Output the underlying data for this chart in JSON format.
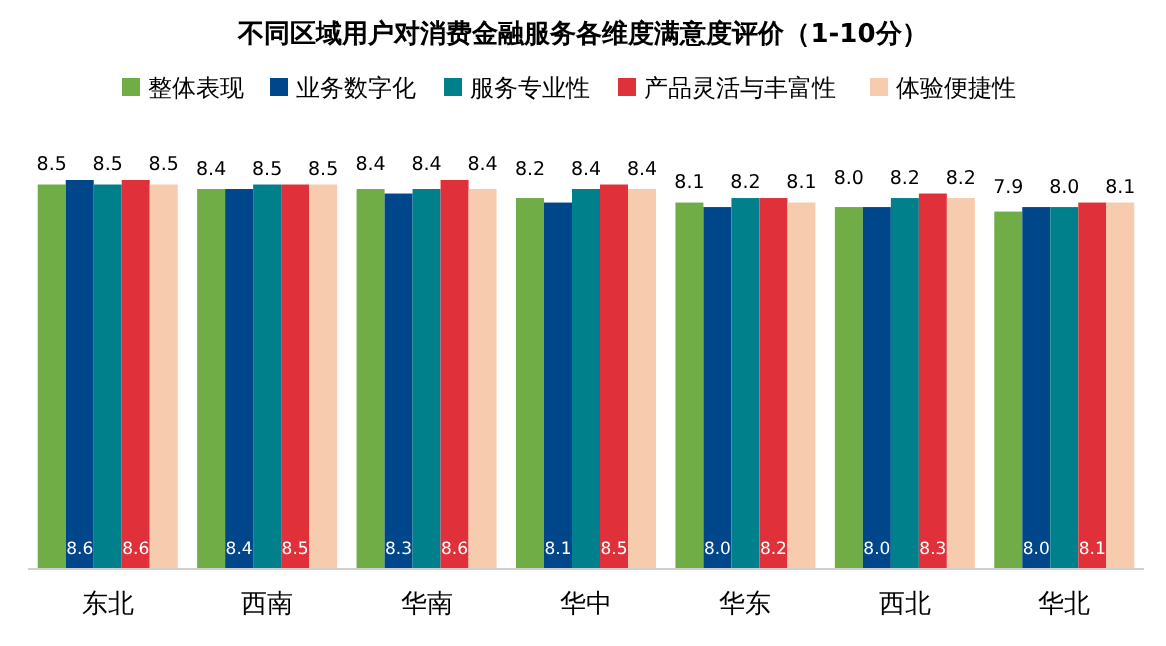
{
  "chart_data": {
    "type": "bar",
    "title": "不同区域用户对消费金融服务各维度满意度评价（1-10分）",
    "categories": [
      "东北",
      "西南",
      "华南",
      "华中",
      "华东",
      "西北",
      "华北"
    ],
    "series": [
      {
        "name": "整体表现",
        "color": "#70ad47",
        "values": [
          8.5,
          8.4,
          8.4,
          8.2,
          8.1,
          8.0,
          7.9
        ],
        "value_labels": [
          "8.5",
          "8.4",
          "8.4",
          "8.2",
          "8.1",
          "8.0",
          "7.9"
        ]
      },
      {
        "name": "业务数字化",
        "color": "#00468b",
        "values": [
          8.6,
          8.4,
          8.3,
          8.1,
          8.0,
          8.0,
          8.0
        ],
        "value_labels": [
          "8.6",
          "8.4",
          "8.3",
          "8.1",
          "8.0",
          "8.0",
          "8.0"
        ]
      },
      {
        "name": "服务专业性",
        "color": "#00808a",
        "values": [
          8.5,
          8.5,
          8.4,
          8.4,
          8.2,
          8.2,
          8.0
        ],
        "value_labels": [
          "8.5",
          "8.5",
          "8.4",
          "8.4",
          "8.2",
          "8.2",
          "8.0"
        ]
      },
      {
        "name": "产品灵活与丰富性",
        "color": "#e0303a",
        "values": [
          8.6,
          8.5,
          8.6,
          8.5,
          8.2,
          8.3,
          8.1
        ],
        "value_labels": [
          "8.6",
          "8.5",
          "8.6",
          "8.5",
          "8.2",
          "8.3",
          "8.1"
        ]
      },
      {
        "name": "体验便捷性",
        "color": "#f7cbad",
        "values": [
          8.5,
          8.5,
          8.4,
          8.4,
          8.1,
          8.2,
          8.1
        ],
        "value_labels": [
          "8.5",
          "8.5",
          "8.4",
          "8.4",
          "8.1",
          "8.2",
          "8.1"
        ]
      }
    ],
    "legend": "top",
    "tick_labels": "x"
  }
}
